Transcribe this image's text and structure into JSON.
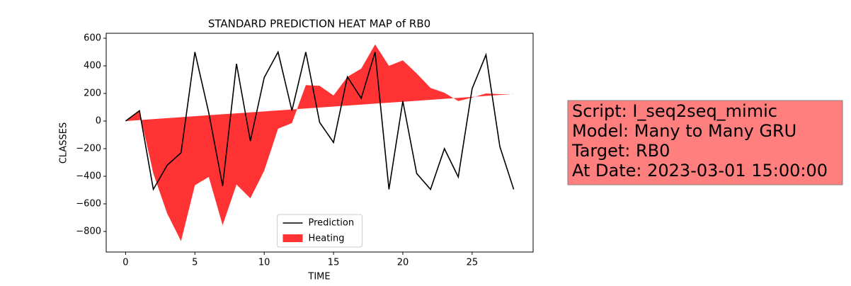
{
  "chart_data": {
    "type": "line",
    "title": "STANDARD PREDICTION HEAT MAP of RB0",
    "x_label": "TIME",
    "y_label": "CLASSES",
    "x": [
      0,
      1,
      2,
      3,
      4,
      5,
      6,
      7,
      8,
      9,
      10,
      11,
      12,
      13,
      14,
      15,
      16,
      17,
      18,
      19,
      20,
      21,
      22,
      23,
      24,
      25,
      26,
      27,
      28
    ],
    "series": [
      {
        "name": "Prediction",
        "color": "#000000",
        "values": [
          0,
          75,
          -495,
          -320,
          -230,
          500,
          60,
          -470,
          415,
          -145,
          315,
          500,
          75,
          500,
          -10,
          -155,
          320,
          165,
          500,
          -495,
          145,
          -380,
          -495,
          -200,
          -405,
          235,
          480,
          -185,
          -495
        ]
      },
      {
        "name": "Heating",
        "type": "area",
        "color": "#ff3333",
        "values": [
          0,
          70,
          -380,
          -670,
          -870,
          -465,
          -405,
          -755,
          -460,
          -560,
          -360,
          -55,
          -15,
          260,
          255,
          185,
          320,
          380,
          555,
          400,
          440,
          345,
          240,
          205,
          145,
          170,
          200,
          195,
          195
        ],
        "base": [
          0,
          7,
          14,
          21,
          28,
          35,
          42,
          49,
          56,
          63,
          70,
          77,
          84,
          91,
          98,
          105,
          112,
          119,
          126,
          133,
          140,
          147,
          154,
          161,
          168,
          175,
          182,
          189,
          196
        ]
      }
    ],
    "xlim": [
      -1.4,
      29.4
    ],
    "xticks": [
      0,
      5,
      10,
      15,
      20,
      25
    ],
    "ylim": [
      -949,
      636
    ],
    "yticks": [
      {
        "value": -800,
        "label": "−800"
      },
      {
        "value": -600,
        "label": "−600"
      },
      {
        "value": -400,
        "label": "−400"
      },
      {
        "value": -200,
        "label": "−200"
      },
      0,
      200,
      400,
      600
    ],
    "legend": "lower center",
    "annotation": [
      "Script: I_seq2seq_mimic",
      "Model: Many to Many GRU",
      "Target: RB0",
      "At Date: 2023-03-01 15:00:00"
    ]
  }
}
